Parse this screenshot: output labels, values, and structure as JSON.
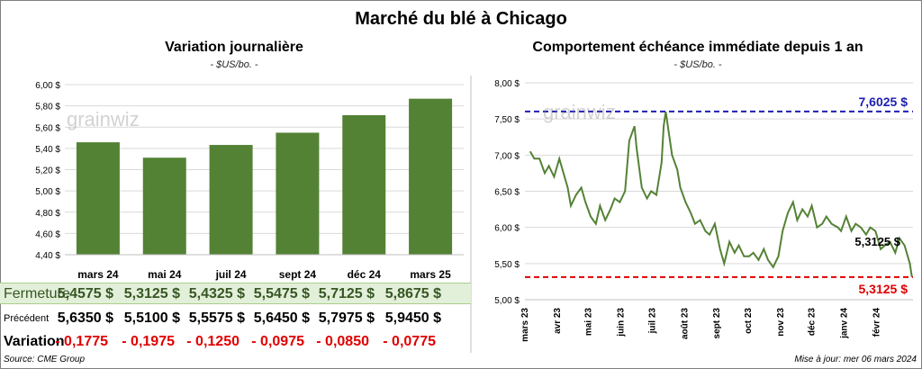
{
  "main_title": "Marché du blé à Chicago",
  "left": {
    "title": "Variation  journalière",
    "unit": "- $US/bo. -"
  },
  "right": {
    "title": "Comportement  échéance immédiate depuis 1 an",
    "unit": "- $US/bo. -"
  },
  "watermark": "grainwiz",
  "colors": {
    "bar": "#548235",
    "line": "#548235",
    "high": "#1f1fb4",
    "low": "#e00000"
  },
  "table": {
    "close_label": "Fermeture",
    "prev_label": "Précédent",
    "var_label": "Variation",
    "close": [
      "5,4575  $",
      "5,3125  $",
      "5,4325  $",
      "5,5475  $",
      "5,7125  $",
      "5,8675  $"
    ],
    "prev": [
      "5,6350  $",
      "5,5100  $",
      "5,5575  $",
      "5,6450  $",
      "5,7975  $",
      "5,9450  $"
    ],
    "var": [
      "- 0,1775",
      "- 0,1975",
      "- 0,1250",
      "- 0,0975",
      "- 0,0850",
      "- 0,0775"
    ]
  },
  "footer": {
    "source": "Source: CME Group",
    "updated": "Mise à jour: mer 06 mars 2024"
  },
  "chart_data": [
    {
      "type": "bar",
      "title": "Variation  journalière",
      "ylabel": "- $US/bo. -",
      "categories": [
        "mars 24",
        "mai 24",
        "juil 24",
        "sept 24",
        "déc 24",
        "mars 25"
      ],
      "values": [
        5.4575,
        5.3125,
        5.4325,
        5.5475,
        5.7125,
        5.8675
      ],
      "ylim": [
        4.4,
        6.0
      ],
      "yticks": [
        "4,40 $",
        "4,60 $",
        "4,80 $",
        "5,00 $",
        "5,20 $",
        "5,40 $",
        "5,60 $",
        "5,80 $",
        "6,00 $"
      ]
    },
    {
      "type": "line",
      "title": "Comportement  échéance immédiate depuis 1 an",
      "ylabel": "- $US/bo. -",
      "ylim": [
        5.0,
        8.0
      ],
      "yticks": [
        "5,00 $",
        "5,50 $",
        "6,00 $",
        "6,50 $",
        "7,00 $",
        "7,50 $",
        "8,00 $"
      ],
      "xticks": [
        "mars 23",
        "avr 23",
        "mai 23",
        "juin 23",
        "juil 23",
        "août 23",
        "sept 23",
        "oct 23",
        "nov 23",
        "déc 23",
        "janv 24",
        "févr 24"
      ],
      "x": [
        "2023-03-06",
        "2023-03-10",
        "2023-03-15",
        "2023-03-20",
        "2023-03-24",
        "2023-03-29",
        "2023-04-03",
        "2023-04-06",
        "2023-04-11",
        "2023-04-14",
        "2023-04-19",
        "2023-04-24",
        "2023-04-28",
        "2023-05-03",
        "2023-05-08",
        "2023-05-12",
        "2023-05-17",
        "2023-05-22",
        "2023-05-26",
        "2023-05-31",
        "2023-06-05",
        "2023-06-09",
        "2023-06-14",
        "2023-06-16",
        "2023-06-21",
        "2023-06-26",
        "2023-06-30",
        "2023-07-05",
        "2023-07-10",
        "2023-07-12",
        "2023-07-14",
        "2023-07-17",
        "2023-07-20",
        "2023-07-25",
        "2023-07-28",
        "2023-08-02",
        "2023-08-07",
        "2023-08-11",
        "2023-08-16",
        "2023-08-21",
        "2023-08-25",
        "2023-08-30",
        "2023-09-04",
        "2023-09-08",
        "2023-09-13",
        "2023-09-18",
        "2023-09-22",
        "2023-09-27",
        "2023-10-02",
        "2023-10-06",
        "2023-10-11",
        "2023-10-16",
        "2023-10-20",
        "2023-10-25",
        "2023-10-30",
        "2023-11-03",
        "2023-11-08",
        "2023-11-13",
        "2023-11-17",
        "2023-11-22",
        "2023-11-27",
        "2023-12-01",
        "2023-12-06",
        "2023-12-11",
        "2023-12-15",
        "2023-12-20",
        "2023-12-26",
        "2023-12-29",
        "2024-01-03",
        "2024-01-08",
        "2024-01-12",
        "2024-01-17",
        "2024-01-22",
        "2024-01-26",
        "2024-01-31",
        "2024-02-05",
        "2024-02-09",
        "2024-02-14",
        "2024-02-19",
        "2024-02-23",
        "2024-02-28",
        "2024-03-04",
        "2024-03-06"
      ],
      "y": [
        7.05,
        6.95,
        6.95,
        6.75,
        6.85,
        6.7,
        6.95,
        6.8,
        6.55,
        6.3,
        6.45,
        6.55,
        6.35,
        6.15,
        6.05,
        6.3,
        6.1,
        6.25,
        6.4,
        6.35,
        6.5,
        7.2,
        7.4,
        7.1,
        6.55,
        6.4,
        6.5,
        6.45,
        6.9,
        7.4,
        7.6,
        7.3,
        7.0,
        6.8,
        6.55,
        6.35,
        6.2,
        6.05,
        6.1,
        5.95,
        5.9,
        6.05,
        5.7,
        5.5,
        5.8,
        5.65,
        5.75,
        5.6,
        5.6,
        5.65,
        5.55,
        5.7,
        5.55,
        5.45,
        5.6,
        5.95,
        6.2,
        6.35,
        6.1,
        6.25,
        6.15,
        6.3,
        6.0,
        6.05,
        6.15,
        6.05,
        6.0,
        5.95,
        6.15,
        5.95,
        6.05,
        6.0,
        5.9,
        6.0,
        5.95,
        5.7,
        5.75,
        5.8,
        5.65,
        5.85,
        5.75,
        5.5,
        5.3125
      ],
      "high": {
        "value": 7.6025,
        "label": "7,6025 $"
      },
      "low": {
        "value": 5.3125,
        "label": "5,3125 $"
      },
      "last_label": "5,3125 $"
    }
  ]
}
